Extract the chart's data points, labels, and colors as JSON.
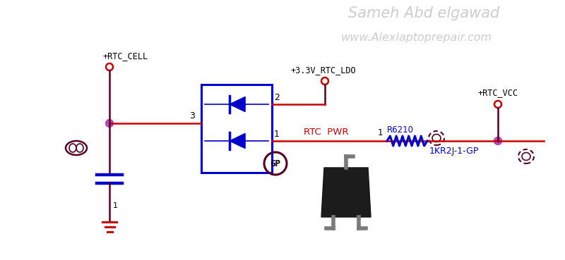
{
  "bg_color": "#ffffff",
  "watermark_text1": "Sameh Abd elgawad",
  "watermark_text2": "www.Alexlaptoprepair.com",
  "watermark_color": "#c8c8c8",
  "wire_red": "#cc0000",
  "wire_dark": "#550022",
  "wire_blue": "#0000cc",
  "text_black": "#000000",
  "text_red": "#cc0000",
  "text_blue": "#0000cc",
  "node_color": "#bb44bb",
  "node_open_color": "#cc0000",
  "label_rtc_cell": "+RTC_CELL",
  "label_rtc_vcc": "+RTC_VCC",
  "label_33v_ldo": "+3.3V_RTC_LDO",
  "label_rtc_pwr": "RTC  PWR",
  "label_r6210": "R6210",
  "label_1kr2j": "1KR2J-1-GP",
  "label_2": "2",
  "label_3": "3",
  "label_1a": "1",
  "label_1b": "1"
}
